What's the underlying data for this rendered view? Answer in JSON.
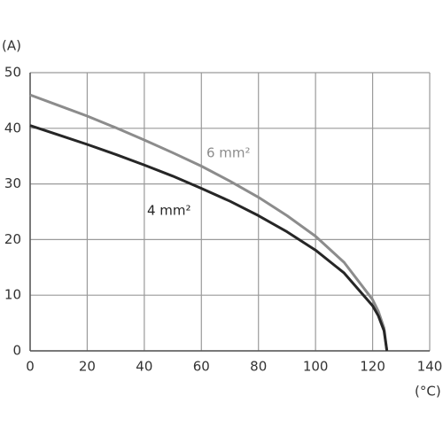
{
  "chart_data": {
    "type": "line",
    "y_label": "(A)",
    "x_label": "(°C)",
    "x": [
      0,
      10,
      20,
      30,
      40,
      50,
      60,
      70,
      80,
      90,
      100,
      110,
      120,
      122,
      124,
      125
    ],
    "series": [
      {
        "name": "6 mm²",
        "color": "#8c8c8c",
        "values": [
          46,
          44.1,
          42.2,
          40.1,
          37.9,
          35.6,
          33.2,
          30.5,
          27.6,
          24.3,
          20.6,
          15.9,
          9.2,
          7.1,
          4.1,
          0
        ]
      },
      {
        "name": "4 mm²",
        "color": "#262626",
        "values": [
          40.5,
          38.8,
          37.1,
          35.3,
          33.4,
          31.4,
          29.2,
          26.9,
          24.3,
          21.4,
          18.1,
          14.0,
          8.1,
          6.3,
          3.6,
          0
        ]
      }
    ],
    "xlim": [
      0,
      140
    ],
    "xticks": [
      0,
      20,
      40,
      60,
      80,
      100,
      120,
      140
    ],
    "ylim": [
      0,
      50
    ],
    "yticks": [
      0,
      10,
      20,
      30,
      40,
      50
    ],
    "grid": true
  }
}
